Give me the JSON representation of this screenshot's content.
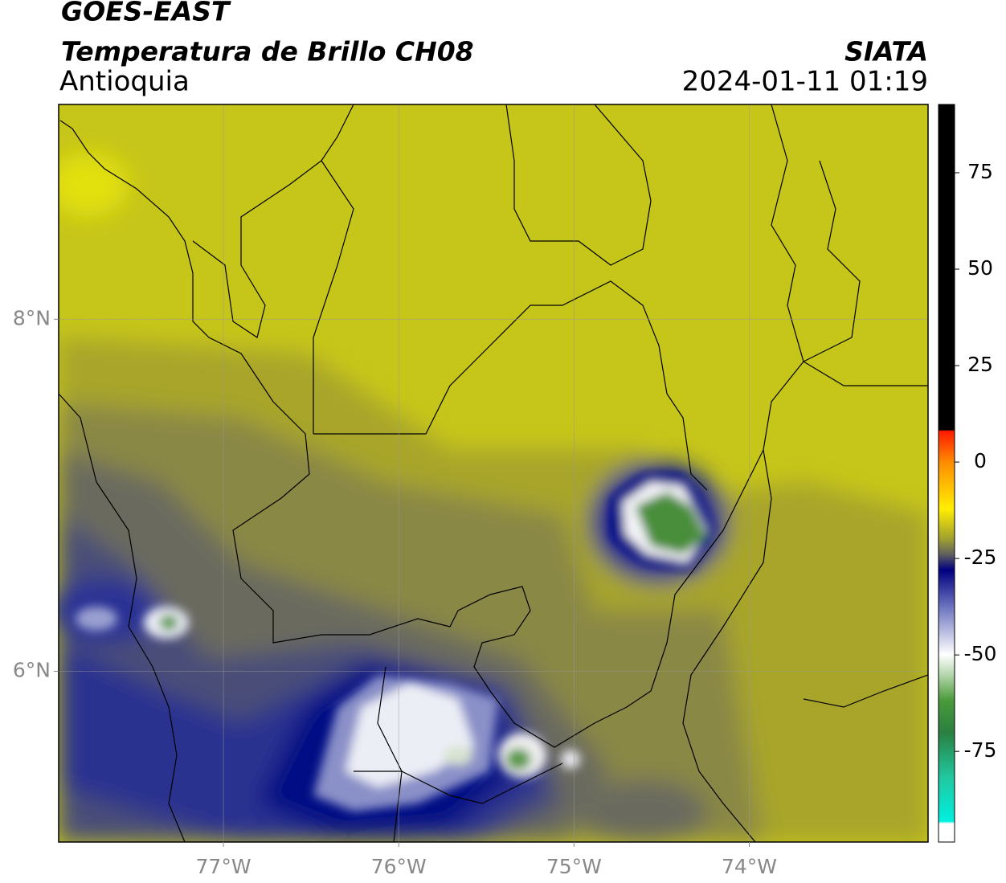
{
  "header": {
    "title": "GOES-EAST",
    "subtitle": "Temperatura de Brillo CH08",
    "region": "Antioquia",
    "source": "SIATA",
    "datetime": "2024-01-11 01:19"
  },
  "map": {
    "xlim": [
      -77.94,
      -72.98
    ],
    "ylim": [
      5.03,
      9.22
    ],
    "xticks": [
      {
        "value": -77,
        "label": "77°W"
      },
      {
        "value": -76,
        "label": "76°W"
      },
      {
        "value": -75,
        "label": "75°W"
      },
      {
        "value": -74,
        "label": "74°W"
      }
    ],
    "yticks": [
      {
        "value": 8,
        "label": "8°N"
      },
      {
        "value": 6,
        "label": "6°N"
      }
    ],
    "grid": true
  },
  "colorbar": {
    "ylim": [
      -98.5,
      92.7
    ],
    "yticks": [
      75,
      50,
      25,
      0,
      -25,
      -50,
      -75
    ]
  }
}
